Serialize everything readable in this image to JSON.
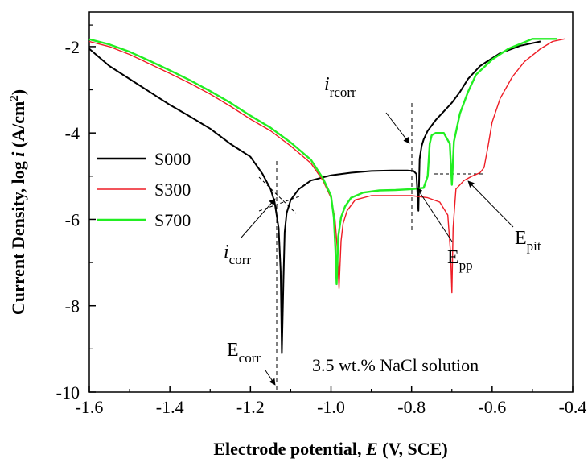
{
  "chart_data": {
    "type": "line",
    "xlabel": "Electrode potential, E (V, SCE)",
    "ylabel": "Current Density, log i (A/cm2)",
    "xlabel_parts": {
      "before": "Electrode potential, ",
      "italic": "E",
      "after": " (V, SCE)"
    },
    "ylabel_parts": {
      "before": "Current Density, log ",
      "italic": "i",
      "after": " (A/cm",
      "sup": "2",
      "end": ")"
    },
    "xlim": [
      -1.6,
      -0.4
    ],
    "ylim": [
      -10,
      -1.2
    ],
    "xticks": [
      -1.6,
      -1.4,
      -1.2,
      -1.0,
      -0.8,
      -0.6,
      -0.4
    ],
    "xtick_labels": [
      "-1.6",
      "-1.4",
      "-1.2",
      "-1.0",
      "-0.8",
      "-0.6",
      "-0.4"
    ],
    "yticks": [
      -2,
      -4,
      -6,
      -8,
      -10
    ],
    "ytick_labels": [
      "-2",
      "-4",
      "-6",
      "-8",
      "-10"
    ],
    "grid": false,
    "legend_position": "center-left",
    "series": [
      {
        "name": "S000",
        "color": "#000000",
        "points": [
          [
            -1.6,
            -2.05
          ],
          [
            -1.55,
            -2.45
          ],
          [
            -1.5,
            -2.75
          ],
          [
            -1.45,
            -3.05
          ],
          [
            -1.4,
            -3.35
          ],
          [
            -1.35,
            -3.62
          ],
          [
            -1.3,
            -3.9
          ],
          [
            -1.25,
            -4.25
          ],
          [
            -1.2,
            -4.55
          ],
          [
            -1.17,
            -4.95
          ],
          [
            -1.15,
            -5.3
          ],
          [
            -1.14,
            -5.6
          ],
          [
            -1.13,
            -6.2
          ],
          [
            -1.125,
            -7.2
          ],
          [
            -1.122,
            -9.1
          ],
          [
            -1.118,
            -7.4
          ],
          [
            -1.115,
            -6.3
          ],
          [
            -1.11,
            -5.85
          ],
          [
            -1.1,
            -5.55
          ],
          [
            -1.08,
            -5.3
          ],
          [
            -1.05,
            -5.1
          ],
          [
            -1.0,
            -4.98
          ],
          [
            -0.95,
            -4.92
          ],
          [
            -0.9,
            -4.88
          ],
          [
            -0.85,
            -4.87
          ],
          [
            -0.81,
            -4.87
          ],
          [
            -0.795,
            -4.88
          ],
          [
            -0.788,
            -4.95
          ],
          [
            -0.783,
            -5.8
          ],
          [
            -0.78,
            -4.6
          ],
          [
            -0.775,
            -4.3
          ],
          [
            -0.77,
            -4.15
          ],
          [
            -0.76,
            -3.95
          ],
          [
            -0.74,
            -3.7
          ],
          [
            -0.72,
            -3.5
          ],
          [
            -0.7,
            -3.3
          ],
          [
            -0.68,
            -3.05
          ],
          [
            -0.66,
            -2.75
          ],
          [
            -0.63,
            -2.45
          ],
          [
            -0.58,
            -2.15
          ],
          [
            -0.53,
            -1.98
          ],
          [
            -0.48,
            -1.88
          ]
        ]
      },
      {
        "name": "S300",
        "color": "#ee1c25",
        "points": [
          [
            -1.6,
            -1.88
          ],
          [
            -1.55,
            -2.0
          ],
          [
            -1.5,
            -2.18
          ],
          [
            -1.45,
            -2.4
          ],
          [
            -1.4,
            -2.62
          ],
          [
            -1.35,
            -2.85
          ],
          [
            -1.3,
            -3.1
          ],
          [
            -1.25,
            -3.38
          ],
          [
            -1.2,
            -3.68
          ],
          [
            -1.15,
            -3.95
          ],
          [
            -1.1,
            -4.3
          ],
          [
            -1.05,
            -4.7
          ],
          [
            -1.02,
            -5.1
          ],
          [
            -1.0,
            -5.5
          ],
          [
            -0.99,
            -6.0
          ],
          [
            -0.985,
            -6.6
          ],
          [
            -0.98,
            -7.6
          ],
          [
            -0.975,
            -6.5
          ],
          [
            -0.97,
            -6.1
          ],
          [
            -0.96,
            -5.8
          ],
          [
            -0.94,
            -5.55
          ],
          [
            -0.9,
            -5.45
          ],
          [
            -0.85,
            -5.45
          ],
          [
            -0.8,
            -5.45
          ],
          [
            -0.76,
            -5.5
          ],
          [
            -0.73,
            -5.6
          ],
          [
            -0.71,
            -5.9
          ],
          [
            -0.703,
            -6.8
          ],
          [
            -0.7,
            -7.7
          ],
          [
            -0.697,
            -6.2
          ],
          [
            -0.69,
            -5.3
          ],
          [
            -0.67,
            -5.1
          ],
          [
            -0.65,
            -5.0
          ],
          [
            -0.63,
            -4.92
          ],
          [
            -0.62,
            -4.8
          ],
          [
            -0.61,
            -4.3
          ],
          [
            -0.6,
            -3.75
          ],
          [
            -0.58,
            -3.2
          ],
          [
            -0.55,
            -2.7
          ],
          [
            -0.52,
            -2.35
          ],
          [
            -0.48,
            -2.05
          ],
          [
            -0.45,
            -1.88
          ],
          [
            -0.42,
            -1.82
          ]
        ]
      },
      {
        "name": "S700",
        "color": "#22ee22",
        "points": [
          [
            -1.6,
            -1.83
          ],
          [
            -1.55,
            -1.95
          ],
          [
            -1.5,
            -2.12
          ],
          [
            -1.45,
            -2.33
          ],
          [
            -1.4,
            -2.55
          ],
          [
            -1.35,
            -2.78
          ],
          [
            -1.3,
            -3.03
          ],
          [
            -1.25,
            -3.3
          ],
          [
            -1.2,
            -3.6
          ],
          [
            -1.15,
            -3.88
          ],
          [
            -1.1,
            -4.22
          ],
          [
            -1.05,
            -4.62
          ],
          [
            -1.02,
            -5.05
          ],
          [
            -1.0,
            -5.45
          ],
          [
            -0.993,
            -5.95
          ],
          [
            -0.989,
            -6.7
          ],
          [
            -0.986,
            -7.5
          ],
          [
            -0.982,
            -6.4
          ],
          [
            -0.975,
            -5.95
          ],
          [
            -0.965,
            -5.7
          ],
          [
            -0.95,
            -5.5
          ],
          [
            -0.92,
            -5.38
          ],
          [
            -0.88,
            -5.33
          ],
          [
            -0.84,
            -5.32
          ],
          [
            -0.8,
            -5.3
          ],
          [
            -0.77,
            -5.27
          ],
          [
            -0.76,
            -5.0
          ],
          [
            -0.755,
            -4.25
          ],
          [
            -0.75,
            -4.05
          ],
          [
            -0.74,
            -4.0
          ],
          [
            -0.72,
            -4.0
          ],
          [
            -0.705,
            -4.25
          ],
          [
            -0.7,
            -5.2
          ],
          [
            -0.695,
            -4.2
          ],
          [
            -0.68,
            -3.55
          ],
          [
            -0.66,
            -3.05
          ],
          [
            -0.64,
            -2.65
          ],
          [
            -0.6,
            -2.3
          ],
          [
            -0.56,
            -2.05
          ],
          [
            -0.52,
            -1.9
          ],
          [
            -0.5,
            -1.82
          ],
          [
            -0.44,
            -1.82
          ]
        ]
      }
    ],
    "annotations": {
      "icorr": {
        "main": "i",
        "sub": "corr"
      },
      "irCorr": {
        "main": "i",
        "sub": "rcorr"
      },
      "Ecorr": {
        "main": "E",
        "sub": "corr"
      },
      "Epp": {
        "main": "E",
        "sub": "pp"
      },
      "Epit": {
        "main": "E",
        "sub": "pit"
      },
      "solution": "3.5 wt.% NaCl solution"
    }
  }
}
